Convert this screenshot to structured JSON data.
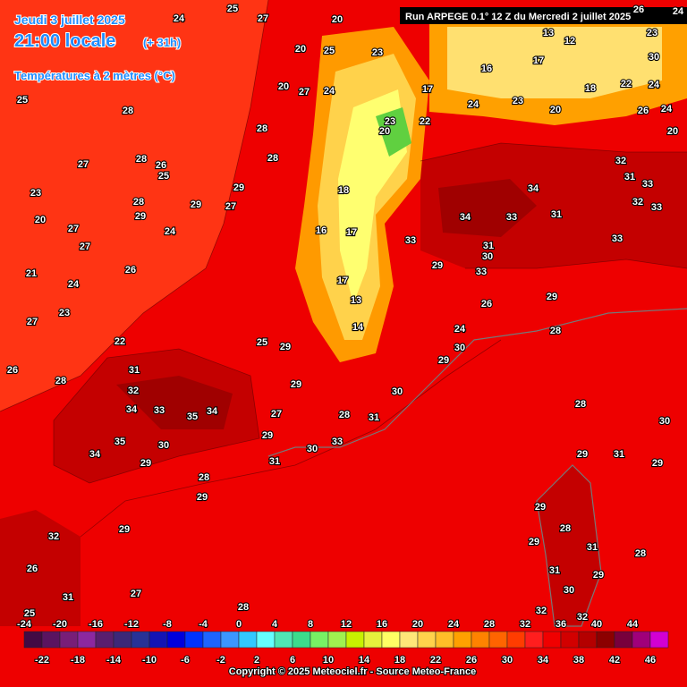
{
  "header": {
    "date": "Jeudi 3 juillet 2025",
    "time": "21:00 locale",
    "lead": "(+ 31h)",
    "parameter": "Températures à 2 mètres (°C)",
    "run": "Run ARPEGE 0.1° 12 Z du Mercredi 2 juillet 2025"
  },
  "legend": {
    "colors": [
      "#420a44",
      "#5a1460",
      "#781e78",
      "#8c28a0",
      "#5a1e6e",
      "#3c2878",
      "#283296",
      "#1414b4",
      "#0000dc",
      "#0032ff",
      "#1e64ff",
      "#3c96ff",
      "#32c8ff",
      "#64ffff",
      "#50e6b4",
      "#3cdc8c",
      "#78f064",
      "#a0f050",
      "#c8f000",
      "#e6f03c",
      "#ffff64",
      "#ffe678",
      "#ffd24b",
      "#ffbe28",
      "#ffa000",
      "#ff8200",
      "#ff6400",
      "#ff3c00",
      "#ff1e1e",
      "#f00000",
      "#d20000",
      "#b40000",
      "#8c0000",
      "#78003c",
      "#a0007a",
      "#d200d2"
    ],
    "top_ticks": [
      -24,
      -20,
      -16,
      -12,
      -8,
      -4,
      0,
      4,
      8,
      12,
      16,
      20,
      24,
      28,
      32,
      36,
      40,
      44
    ],
    "bottom_ticks": [
      -22,
      -18,
      -14,
      -10,
      -6,
      -2,
      2,
      6,
      10,
      14,
      18,
      22,
      26,
      30,
      34,
      38,
      42,
      46
    ]
  },
  "map_labels": [
    25,
    28,
    27,
    23,
    20,
    27,
    27,
    21,
    24,
    26,
    27,
    23,
    22,
    26,
    28,
    31,
    32,
    34,
    33,
    35,
    34,
    35,
    30,
    34,
    29,
    28,
    29,
    29,
    27,
    28,
    32,
    26,
    31,
    25,
    25,
    29,
    29,
    27,
    29,
    30,
    31,
    33,
    28,
    31,
    30,
    29,
    30,
    24,
    26,
    29,
    33,
    34,
    33,
    31,
    34,
    33,
    32,
    31,
    33,
    32,
    33,
    31,
    30,
    33,
    29,
    28,
    28,
    29,
    31,
    28,
    29,
    30,
    29,
    29,
    31,
    30,
    32,
    29,
    31,
    32,
    28,
    24,
    20,
    27,
    25,
    23,
    20,
    20,
    24,
    25,
    27,
    28,
    28,
    29,
    27,
    29,
    25,
    26,
    28,
    28,
    29,
    24,
    22,
    24,
    23,
    20,
    18,
    22,
    30,
    24,
    26,
    24,
    20,
    24,
    26,
    23,
    13,
    14,
    17,
    17,
    16,
    18,
    23,
    20,
    17,
    16,
    17,
    13,
    12
  ],
  "footer": {
    "copyright": "Copyright © 2025 Meteociel.fr - Source Meteo-France"
  }
}
